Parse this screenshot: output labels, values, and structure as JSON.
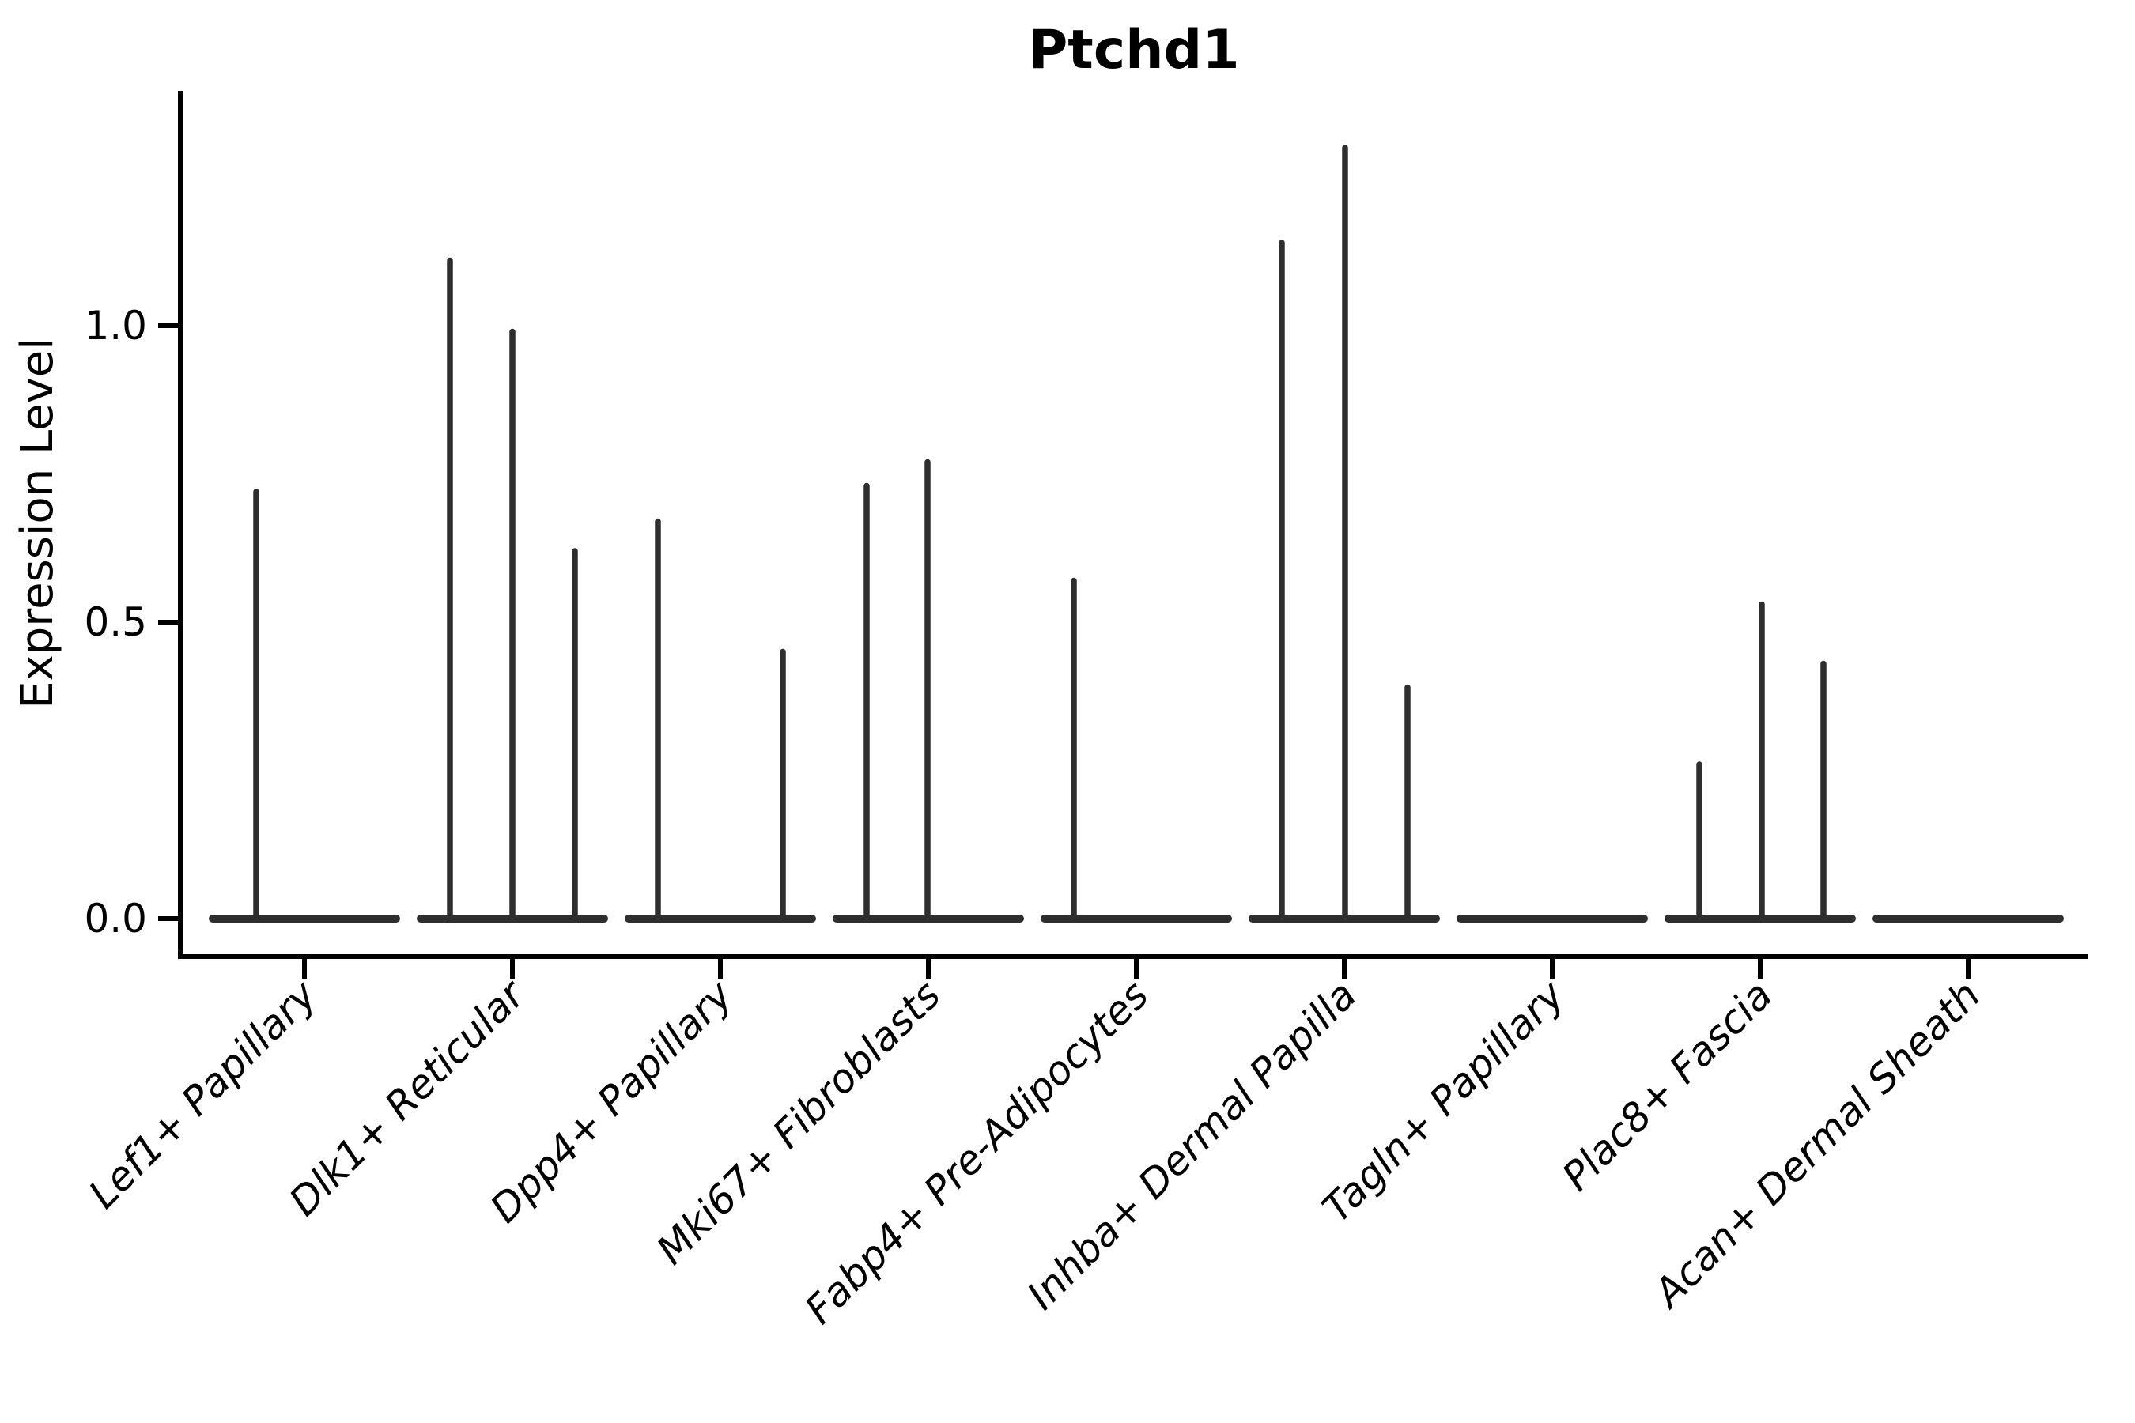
{
  "chart_data": {
    "type": "violin",
    "title": "Ptchd1",
    "ylabel": "Expression Level",
    "xlabel": "",
    "background_color": "#ffffff",
    "axis_color": "#000000",
    "violin_color": "#2e2e2e",
    "grid": "off",
    "legend": "none",
    "ylim": [
      -0.06,
      1.4
    ],
    "yticks": [
      {
        "label": "0.0",
        "value": 0.0
      },
      {
        "label": "0.5",
        "value": 0.5
      },
      {
        "label": "1.0",
        "value": 1.0
      }
    ],
    "categories": [
      {
        "label": "Lef1+ Papillary",
        "needles": [
          {
            "dx": -61,
            "value": 0.72
          }
        ]
      },
      {
        "label": "Dlk1+ Reticular",
        "needles": [
          {
            "dx": -79,
            "value": 1.11
          },
          {
            "dx": 0,
            "value": 0.99
          },
          {
            "dx": 79,
            "value": 0.62
          }
        ]
      },
      {
        "label": "Dpp4+ Papillary",
        "needles": [
          {
            "dx": -79,
            "value": 0.67
          },
          {
            "dx": 79,
            "value": 0.45
          }
        ]
      },
      {
        "label": "Mki67+ Fibroblasts",
        "needles": [
          {
            "dx": -78,
            "value": 0.73
          },
          {
            "dx": -1,
            "value": 0.77
          }
        ]
      },
      {
        "label": "Fabp4+ Pre-Adipocytes",
        "needles": [
          {
            "dx": -79,
            "value": 0.57
          }
        ]
      },
      {
        "label": "Inhba+ Dermal Papilla",
        "needles": [
          {
            "dx": -79,
            "value": 1.14
          },
          {
            "dx": 1,
            "value": 1.3
          },
          {
            "dx": 80,
            "value": 0.39
          }
        ]
      },
      {
        "label": "Tagln+ Papillary",
        "needles": []
      },
      {
        "label": "Plac8+ Fascia",
        "needles": [
          {
            "dx": -77,
            "value": 0.26
          },
          {
            "dx": 2,
            "value": 0.53
          },
          {
            "dx": 80,
            "value": 0.43
          }
        ]
      },
      {
        "label": "Acan+ Dermal Sheath",
        "needles": []
      }
    ]
  }
}
